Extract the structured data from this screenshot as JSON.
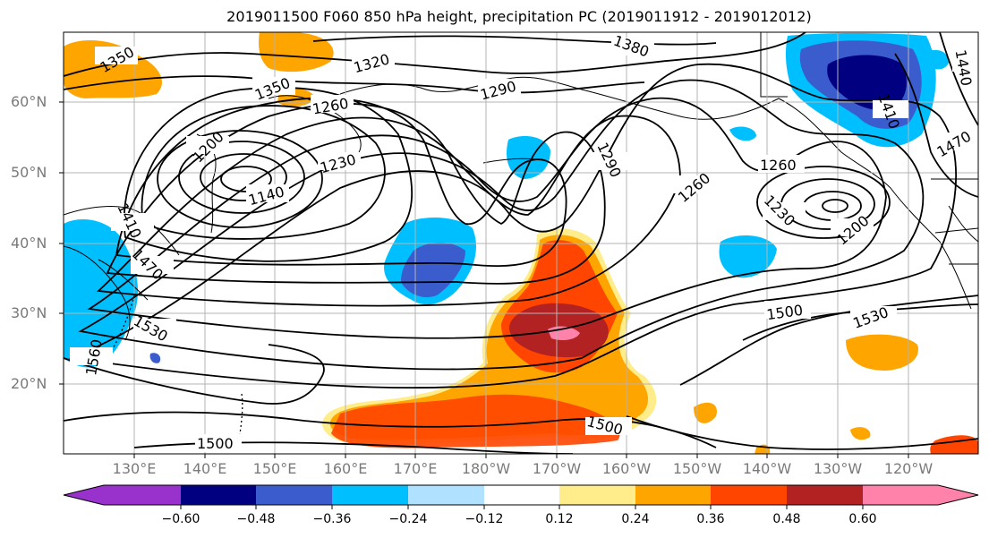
{
  "title": "2019011500 F060 850 hPa height, precipitation PC (2019011912 - 2019012012)",
  "lat_labels": [
    "60°N",
    "50°N",
    "40°N",
    "30°N",
    "20°N"
  ],
  "lon_labels": [
    "130°E",
    "140°E",
    "150°E",
    "160°E",
    "170°E",
    "180°W",
    "170°W",
    "160°W",
    "150°W",
    "140°W",
    "130°W",
    "120°W"
  ],
  "contour_labels": {
    "c1350a": "1350",
    "c1350b": "1350",
    "c1320": "1320",
    "c1380": "1380",
    "c1290a": "1290",
    "c1260a": "1260",
    "c1200a": "1200",
    "c1230a": "1230",
    "c1140": "1140",
    "c1410": "1410",
    "c1470a": "1470",
    "c1530a": "1530",
    "c1560": "1560",
    "c1290b": "1290",
    "c1260b": "1260",
    "c1260c": "1260",
    "c1230b": "1230",
    "c1200b": "1200",
    "c1500a": "1500",
    "c1530b": "1530",
    "c1500b": "1500",
    "c1500c": "1500",
    "c1440": "1440",
    "c1410b": "1410",
    "c1470b": "1470"
  },
  "colorbar": {
    "ticks": [
      "−0.60",
      "−0.48",
      "−0.36",
      "−0.24",
      "−0.12",
      "0.12",
      "0.24",
      "0.36",
      "0.48",
      "0.60"
    ],
    "colors": [
      "#9932cc",
      "#000080",
      "#3a5ccc",
      "#00bfff",
      "#b0e2ff",
      "#ffffff",
      "#ffec8b",
      "#ffa500",
      "#ff4500",
      "#b22222",
      "#ff82ab"
    ]
  }
}
